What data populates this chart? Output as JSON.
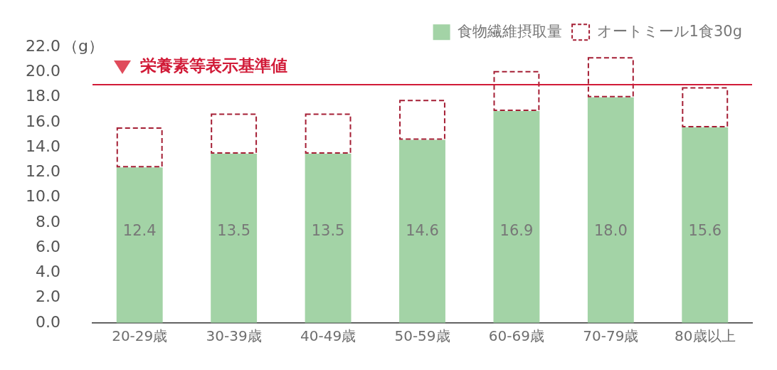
{
  "chart_data": {
    "type": "bar",
    "ylabel": "（g）",
    "categories": [
      "20-29歳",
      "30-39歳",
      "40-49歳",
      "50-59歳",
      "60-69歳",
      "70-79歳",
      "80歳以上"
    ],
    "series": [
      {
        "name": "食物繊維摂取量",
        "color": "#a3d3a6",
        "values": [
          12.4,
          13.5,
          13.5,
          14.6,
          16.9,
          18.0,
          15.6
        ],
        "value_labels": [
          "12.4",
          "13.5",
          "13.5",
          "14.6",
          "16.9",
          "18.0",
          "15.6"
        ]
      },
      {
        "name": "オートミール1食30g",
        "color": "#a51f35",
        "line_style": "dashed",
        "values": [
          3.2,
          3.2,
          3.2,
          3.2,
          3.2,
          3.2,
          3.2
        ]
      }
    ],
    "stacked": true,
    "ylim": [
      0,
      22
    ],
    "yticks": [
      {
        "value": 0,
        "label": "0.0"
      },
      {
        "value": 2,
        "label": "2.0"
      },
      {
        "value": 4,
        "label": "4.0"
      },
      {
        "value": 6,
        "label": "6.0"
      },
      {
        "value": 8,
        "label": "8.0"
      },
      {
        "value": 10,
        "label": "10.0"
      },
      {
        "value": 12,
        "label": "12.0"
      },
      {
        "value": 14,
        "label": "14.0"
      },
      {
        "value": 16,
        "label": "16.0"
      },
      {
        "value": 18,
        "label": "18.0"
      },
      {
        "value": 20,
        "label": "20.0"
      },
      {
        "value": 22,
        "label": "22.0"
      }
    ],
    "ref_lines": [
      {
        "axis": "y",
        "value": 19,
        "label": "栄養素等表示基準値",
        "color": "#d11a37"
      }
    ],
    "legend": "top right"
  }
}
